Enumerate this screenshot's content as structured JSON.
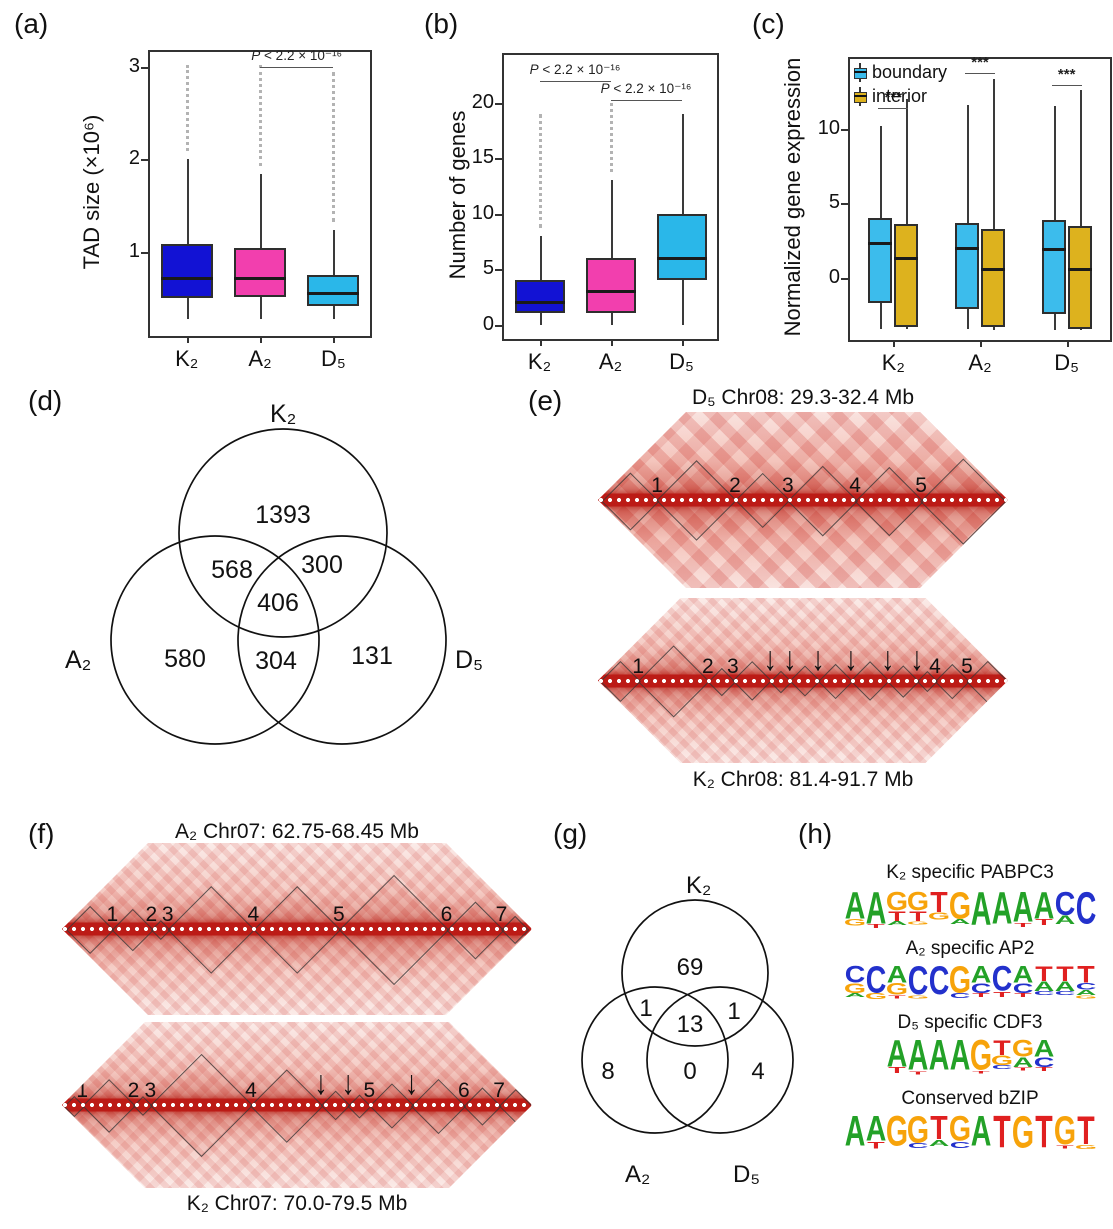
{
  "panel_labels": {
    "a": "(a)",
    "b": "(b)",
    "c": "(c)",
    "d": "(d)",
    "e": "(e)",
    "f": "(f)",
    "g": "(g)",
    "h": "(h)"
  },
  "colors": {
    "k2": "#1212d4",
    "a2": "#f23fae",
    "d5": "#2ab7e9",
    "boundary": "#3cbcec",
    "interior": "#ddb21e",
    "logoA": "#23a127",
    "logoC": "#2331cc",
    "logoG": "#f7a30a",
    "logoT": "#e02020"
  },
  "chart_data": [
    {
      "id": "a",
      "type": "boxplot",
      "ylabel": "TAD size (×10⁶)",
      "yticks": [
        1,
        2,
        3
      ],
      "ylim": [
        0.09,
        3.16
      ],
      "categories": [
        "K₂",
        "A₂",
        "D₅"
      ],
      "series": [
        {
          "name": "K₂",
          "color": "k2",
          "wlo": 0.27,
          "q1": 0.5,
          "med": 0.71,
          "q3": 1.08,
          "whi": 2.0,
          "out_to": 3.02
        },
        {
          "name": "A₂",
          "color": "a2",
          "wlo": 0.27,
          "q1": 0.51,
          "med": 0.71,
          "q3": 1.04,
          "whi": 1.84,
          "out_to": 3.02
        },
        {
          "name": "D₅",
          "color": "d5",
          "wlo": 0.27,
          "q1": 0.41,
          "med": 0.55,
          "q3": 0.75,
          "whi": 1.24,
          "out_to": 2.94
        }
      ],
      "sig": [
        {
          "from": 1,
          "to": 2,
          "y": 3.0,
          "label_p": "P",
          "label_rest": " < 2.2 × 10⁻¹⁶"
        }
      ]
    },
    {
      "id": "b",
      "type": "boxplot",
      "ylabel": "Number of genes",
      "yticks": [
        0,
        5,
        10,
        15,
        20
      ],
      "ylim": [
        -1.3,
        24.3
      ],
      "categories": [
        "K₂",
        "A₂",
        "D₅"
      ],
      "series": [
        {
          "name": "K₂",
          "color": "k2",
          "wlo": 0,
          "q1": 1,
          "med": 2,
          "q3": 4,
          "whi": 8,
          "out_to": 19
        },
        {
          "name": "A₂",
          "color": "a2",
          "wlo": 0,
          "q1": 1,
          "med": 3,
          "q3": 6,
          "whi": 13,
          "out_to": 20
        },
        {
          "name": "D₅",
          "color": "d5",
          "wlo": 0,
          "q1": 4,
          "med": 6,
          "q3": 10,
          "whi": 19,
          "out_to": null
        }
      ],
      "sig": [
        {
          "from": 0,
          "to": 1,
          "y": 22.0,
          "label_p": "P",
          "label_rest": " < 2.2 × 10⁻¹⁶"
        },
        {
          "from": 1,
          "to": 2,
          "y": 20.2,
          "label_p": "P",
          "label_rest": " < 2.2 × 10⁻¹⁶"
        }
      ]
    },
    {
      "id": "c",
      "type": "grouped_boxplot",
      "ylabel": "Normalized gene expression",
      "yticks": [
        0,
        5,
        10
      ],
      "ylim": [
        -4.15,
        14.67
      ],
      "categories": [
        "K₂",
        "A₂",
        "D₅"
      ],
      "legend": [
        "boundary",
        "interior"
      ],
      "groups": [
        {
          "name": "K₂",
          "sig_y": 11.4,
          "sig_label": "***",
          "boundary": {
            "wlo": -3.4,
            "q1": -1.7,
            "med": 2.3,
            "q3": 4.0,
            "whi": 10.2
          },
          "interior": {
            "wlo": -3.4,
            "q1": -3.3,
            "med": 1.3,
            "q3": 3.6,
            "whi": 12.0
          }
        },
        {
          "name": "A₂",
          "sig_y": 13.7,
          "sig_label": "***",
          "boundary": {
            "wlo": -3.4,
            "q1": -2.1,
            "med": 2.0,
            "q3": 3.7,
            "whi": 11.6
          },
          "interior": {
            "wlo": -3.5,
            "q1": -3.3,
            "med": 0.6,
            "q3": 3.3,
            "whi": 13.3
          }
        },
        {
          "name": "D₅",
          "sig_y": 12.9,
          "sig_label": "***",
          "boundary": {
            "wlo": -3.5,
            "q1": -2.4,
            "med": 1.9,
            "q3": 3.9,
            "whi": 11.5
          },
          "interior": {
            "wlo": -3.5,
            "q1": -3.4,
            "med": 0.6,
            "q3": 3.5,
            "whi": 12.6
          }
        }
      ]
    },
    {
      "id": "d",
      "type": "venn",
      "sets": [
        "K₂",
        "A₂",
        "D₅"
      ],
      "labels": {
        "top": "K₂",
        "left": "A₂",
        "right": "D₅"
      },
      "values": {
        "top": "1393",
        "top_left": "568",
        "top_right": "300",
        "center": "406",
        "left": "580",
        "bottom": "304",
        "right": "131"
      },
      "regions": {
        "K₂ only": 1393,
        "K₂∩A₂": 568,
        "K₂∩D₅": 300,
        "K₂∩A₂∩D₅": 406,
        "A₂ only": 580,
        "A₂∩D₅": 304,
        "D₅ only": 131
      }
    },
    {
      "id": "g",
      "type": "venn",
      "sets": [
        "K₂",
        "A₂",
        "D₅"
      ],
      "labels": {
        "top": "K₂",
        "left": "A₂",
        "right": "D₅"
      },
      "values": {
        "top": "69",
        "top_left": "1",
        "top_right": "1",
        "center": "13",
        "left": "8",
        "bottom": "0",
        "right": "4"
      },
      "regions": {
        "K₂ only": 69,
        "K₂∩A₂": 1,
        "K₂∩D₅": 1,
        "K₂∩A₂∩D₅": 13,
        "A₂ only": 8,
        "A₂∩D₅": 0,
        "D₅ only": 4
      }
    }
  ],
  "hic": {
    "e_top": {
      "title": "D₅ Chr08: 29.3-32.4 Mb",
      "coarse": true,
      "numbers": [
        {
          "n": "1",
          "x": 0.144
        },
        {
          "n": "2",
          "x": 0.334
        },
        {
          "n": "3",
          "x": 0.463
        },
        {
          "n": "4",
          "x": 0.627
        },
        {
          "n": "5",
          "x": 0.788
        }
      ],
      "arrows": [],
      "domains": [
        [
          0.01,
          0.144
        ],
        [
          0.144,
          0.334
        ],
        [
          0.334,
          0.463
        ],
        [
          0.463,
          0.627
        ],
        [
          0.627,
          0.788
        ],
        [
          0.788,
          0.99
        ]
      ]
    },
    "e_bottom": {
      "caption": "K₂ Chr08: 81.4-91.7 Mb",
      "coarse": false,
      "numbers": [
        {
          "n": "1",
          "x": 0.098
        },
        {
          "n": "2",
          "x": 0.268
        },
        {
          "n": "3",
          "x": 0.329
        },
        {
          "n": "4",
          "x": 0.822
        },
        {
          "n": "5",
          "x": 0.9
        }
      ],
      "arrows": [
        0.42,
        0.468,
        0.537,
        0.617,
        0.707,
        0.778
      ],
      "domains": [
        [
          0.005,
          0.098
        ],
        [
          0.098,
          0.268
        ],
        [
          0.268,
          0.329
        ],
        [
          0.329,
          0.42
        ],
        [
          0.42,
          0.468
        ],
        [
          0.468,
          0.537
        ],
        [
          0.537,
          0.617
        ],
        [
          0.617,
          0.707
        ],
        [
          0.707,
          0.778
        ],
        [
          0.778,
          0.822
        ],
        [
          0.822,
          0.9
        ],
        [
          0.9,
          0.995
        ]
      ]
    },
    "f_top": {
      "title": "A₂ Chr07: 62.75-68.45 Mb",
      "coarse": false,
      "numbers": [
        {
          "n": "1",
          "x": 0.107
        },
        {
          "n": "2",
          "x": 0.19
        },
        {
          "n": "3",
          "x": 0.225
        },
        {
          "n": "4",
          "x": 0.407
        },
        {
          "n": "5",
          "x": 0.589
        },
        {
          "n": "6",
          "x": 0.818
        },
        {
          "n": "7",
          "x": 0.935
        }
      ],
      "arrows": [],
      "domains": [
        [
          0.01,
          0.107
        ],
        [
          0.107,
          0.19
        ],
        [
          0.19,
          0.225
        ],
        [
          0.225,
          0.407
        ],
        [
          0.407,
          0.589
        ],
        [
          0.589,
          0.818
        ],
        [
          0.818,
          0.935
        ],
        [
          0.935,
          0.99
        ]
      ]
    },
    "f_bottom": {
      "caption": "K₂ Chr07: 70.0-79.5 Mb",
      "coarse": false,
      "numbers": [
        {
          "n": "1",
          "x": 0.043
        },
        {
          "n": "2",
          "x": 0.152
        },
        {
          "n": "3",
          "x": 0.188
        },
        {
          "n": "4",
          "x": 0.402
        },
        {
          "n": "5",
          "x": 0.654
        },
        {
          "n": "6",
          "x": 0.855
        },
        {
          "n": "7",
          "x": 0.93
        }
      ],
      "arrows": [
        0.551,
        0.609,
        0.744
      ],
      "domains": [
        [
          0.005,
          0.043
        ],
        [
          0.043,
          0.152
        ],
        [
          0.152,
          0.188
        ],
        [
          0.188,
          0.402
        ],
        [
          0.402,
          0.551
        ],
        [
          0.551,
          0.609
        ],
        [
          0.609,
          0.654
        ],
        [
          0.654,
          0.744
        ],
        [
          0.744,
          0.855
        ],
        [
          0.855,
          0.93
        ],
        [
          0.93,
          0.995
        ]
      ]
    }
  },
  "logos": [
    {
      "title": "K₂ specific PABPC3",
      "consensus": "AAGGTGAAAACC",
      "cols": [
        [
          [
            "A",
            0.8
          ],
          [
            "G",
            0.2
          ]
        ],
        [
          [
            "A",
            0.95
          ],
          [
            "T",
            0.12
          ]
        ],
        [
          [
            "G",
            0.55
          ],
          [
            "T",
            0.3
          ],
          [
            "A",
            0.12
          ]
        ],
        [
          [
            "G",
            0.55
          ],
          [
            "T",
            0.3
          ],
          [
            "G",
            0.1
          ]
        ],
        [
          [
            "T",
            0.6
          ],
          [
            "G",
            0.22
          ]
        ],
        [
          [
            "G",
            0.8
          ],
          [
            "A",
            0.15
          ]
        ],
        [
          [
            "A",
            1.0
          ]
        ],
        [
          [
            "A",
            0.95
          ]
        ],
        [
          [
            "A",
            0.9
          ],
          [
            "T",
            0.12
          ]
        ],
        [
          [
            "A",
            0.8
          ],
          [
            "T",
            0.18
          ]
        ],
        [
          [
            "C",
            0.7
          ],
          [
            "A",
            0.25
          ]
        ],
        [
          [
            "C",
            0.95
          ]
        ]
      ]
    },
    {
      "title": "A₂ specific AP2",
      "consensus": "CCACCGACATTT",
      "cols": [
        [
          [
            "C",
            0.5
          ],
          [
            "G",
            0.3
          ],
          [
            "A",
            0.12
          ]
        ],
        [
          [
            "C",
            0.8
          ],
          [
            "G",
            0.18
          ]
        ],
        [
          [
            "A",
            0.5
          ],
          [
            "G",
            0.35
          ],
          [
            "T",
            0.1
          ]
        ],
        [
          [
            "C",
            0.85
          ],
          [
            "G",
            0.1
          ]
        ],
        [
          [
            "C",
            0.85
          ]
        ],
        [
          [
            "G",
            0.8
          ],
          [
            "C",
            0.15
          ]
        ],
        [
          [
            "A",
            0.5
          ],
          [
            "C",
            0.3
          ],
          [
            "T",
            0.12
          ]
        ],
        [
          [
            "C",
            0.75
          ],
          [
            "T",
            0.15
          ]
        ],
        [
          [
            "A",
            0.5
          ],
          [
            "C",
            0.3
          ],
          [
            "T",
            0.12
          ]
        ],
        [
          [
            "T",
            0.45
          ],
          [
            "A",
            0.3
          ],
          [
            "C",
            0.12
          ]
        ],
        [
          [
            "T",
            0.45
          ],
          [
            "A",
            0.3
          ],
          [
            "C",
            0.12
          ]
        ],
        [
          [
            "T",
            0.5
          ],
          [
            "C",
            0.2
          ],
          [
            "A",
            0.15
          ],
          [
            "G",
            0.1
          ]
        ]
      ]
    },
    {
      "title": "D₅ specific CDF3",
      "consensus": "AAAAGTGA",
      "cols": [
        [
          [
            "A",
            0.8
          ],
          [
            "T",
            0.18
          ]
        ],
        [
          [
            "A",
            0.9
          ],
          [
            "T",
            0.1
          ]
        ],
        [
          [
            "A",
            0.9
          ]
        ],
        [
          [
            "A",
            0.9
          ]
        ],
        [
          [
            "G",
            0.9
          ],
          [
            "T",
            0.08
          ]
        ],
        [
          [
            "T",
            0.45
          ],
          [
            "G",
            0.3
          ],
          [
            "C",
            0.12
          ]
        ],
        [
          [
            "G",
            0.5
          ],
          [
            "A",
            0.3
          ],
          [
            "T",
            0.1
          ]
        ],
        [
          [
            "A",
            0.5
          ],
          [
            "C",
            0.3
          ],
          [
            "T",
            0.12
          ]
        ]
      ]
    },
    {
      "title": "Conserved bZIP",
      "consensus": "AAGGTGATGTGT",
      "cols": [
        [
          [
            "A",
            0.9
          ]
        ],
        [
          [
            "A",
            0.75
          ],
          [
            "T",
            0.2
          ]
        ],
        [
          [
            "G",
            0.9
          ]
        ],
        [
          [
            "G",
            0.8
          ],
          [
            "C",
            0.15
          ]
        ],
        [
          [
            "T",
            0.7
          ],
          [
            "A",
            0.18
          ]
        ],
        [
          [
            "G",
            0.75
          ],
          [
            "C",
            0.18
          ]
        ],
        [
          [
            "A",
            0.9
          ]
        ],
        [
          [
            "T",
            0.95
          ]
        ],
        [
          [
            "G",
            0.95
          ]
        ],
        [
          [
            "T",
            0.95
          ]
        ],
        [
          [
            "G",
            0.85
          ],
          [
            "T",
            0.1
          ]
        ],
        [
          [
            "T",
            0.85
          ],
          [
            "G",
            0.12
          ]
        ]
      ]
    }
  ]
}
